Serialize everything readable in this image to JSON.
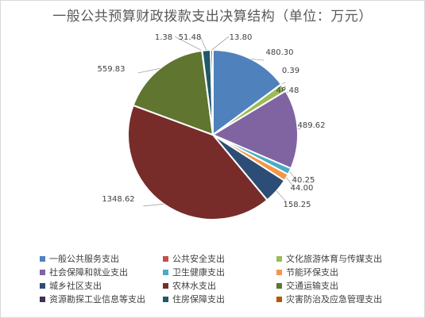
{
  "chart_data": {
    "type": "pie",
    "title": "一般公共预算财政拨款支出决算结构（单位：万元）",
    "categories": [
      "一般公共服务支出",
      "公共安全支出",
      "文化旅游体育与传媒支出",
      "社会保障和就业支出",
      "卫生健康支出",
      "节能环保支出",
      "城乡社区支出",
      "农林水支出",
      "交通运输支出",
      "资源勘探工业信息等支出",
      "住房保障支出",
      "灾害防治及应急管理支出"
    ],
    "values": [
      480.3,
      0.39,
      48.48,
      489.62,
      40.25,
      44.0,
      158.25,
      1348.62,
      559.83,
      1.38,
      51.48,
      13.8
    ],
    "value_labels": [
      "480.30",
      "0.39",
      "48.48",
      "489.62",
      "40.25",
      "44.00",
      "158.25",
      "1348.62",
      "559.83",
      "1.38",
      "51.48",
      "13.80"
    ],
    "colors": [
      "#4f81bd",
      "#c0504d",
      "#9bbb59",
      "#8064a2",
      "#4bacc6",
      "#f79646",
      "#2c4d75",
      "#772c2a",
      "#5f7530",
      "#3f3151",
      "#215968",
      "#b65708"
    ],
    "legend_position": "bottom"
  }
}
